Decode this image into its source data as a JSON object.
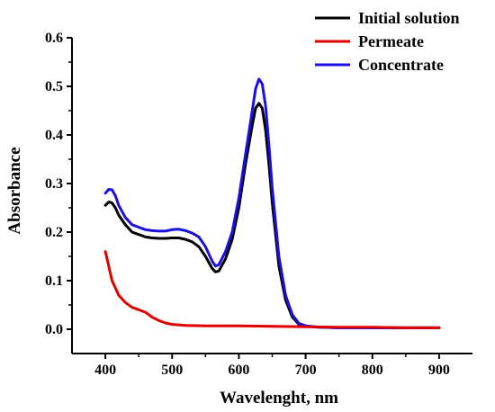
{
  "chart_data": {
    "type": "line",
    "xlabel": "Wavelenght, nm",
    "ylabel": "Absorbance",
    "xlim": [
      350,
      950
    ],
    "ylim": [
      -0.05,
      0.6
    ],
    "xticks": [
      400,
      500,
      600,
      700,
      800,
      900
    ],
    "yticks": [
      0.0,
      0.1,
      0.2,
      0.3,
      0.4,
      0.5,
      0.6
    ],
    "ytick_labels": [
      "0.0",
      "0.1",
      "0.2",
      "0.3",
      "0.4",
      "0.5",
      "0.6"
    ],
    "grid": false,
    "legend_position": "top-right",
    "series": [
      {
        "name": "Initial solution",
        "color": "#000000",
        "x": [
          400,
          405,
          410,
          415,
          420,
          430,
          440,
          450,
          460,
          470,
          480,
          490,
          500,
          510,
          520,
          530,
          540,
          550,
          560,
          565,
          570,
          580,
          590,
          600,
          610,
          620,
          625,
          630,
          635,
          640,
          645,
          650,
          660,
          670,
          680,
          690,
          700,
          720,
          750,
          800,
          850,
          900
        ],
        "y": [
          0.255,
          0.262,
          0.26,
          0.25,
          0.235,
          0.215,
          0.2,
          0.195,
          0.19,
          0.188,
          0.187,
          0.187,
          0.188,
          0.188,
          0.185,
          0.18,
          0.17,
          0.15,
          0.125,
          0.118,
          0.12,
          0.145,
          0.185,
          0.25,
          0.34,
          0.42,
          0.455,
          0.465,
          0.455,
          0.41,
          0.34,
          0.26,
          0.13,
          0.06,
          0.025,
          0.01,
          0.006,
          0.004,
          0.003,
          0.003,
          0.003,
          0.003
        ]
      },
      {
        "name": "Permeate",
        "color": "#e00000",
        "x": [
          400,
          405,
          410,
          420,
          430,
          440,
          450,
          460,
          470,
          480,
          490,
          500,
          520,
          550,
          600,
          650,
          700,
          750,
          800,
          850,
          900
        ],
        "y": [
          0.16,
          0.13,
          0.1,
          0.07,
          0.055,
          0.045,
          0.04,
          0.035,
          0.025,
          0.018,
          0.013,
          0.01,
          0.008,
          0.007,
          0.007,
          0.006,
          0.005,
          0.004,
          0.004,
          0.003,
          0.003
        ]
      },
      {
        "name": "Concentrate",
        "color": "#1a10e0",
        "x": [
          400,
          405,
          410,
          415,
          420,
          430,
          440,
          450,
          460,
          470,
          480,
          490,
          500,
          510,
          520,
          530,
          540,
          550,
          560,
          565,
          570,
          580,
          590,
          600,
          610,
          620,
          625,
          630,
          635,
          640,
          645,
          650,
          660,
          670,
          680,
          690,
          700,
          720,
          750,
          800,
          850,
          900
        ],
        "y": [
          0.28,
          0.288,
          0.287,
          0.275,
          0.255,
          0.23,
          0.215,
          0.21,
          0.205,
          0.203,
          0.202,
          0.202,
          0.205,
          0.206,
          0.203,
          0.198,
          0.19,
          0.17,
          0.14,
          0.13,
          0.133,
          0.16,
          0.2,
          0.27,
          0.36,
          0.45,
          0.495,
          0.515,
          0.505,
          0.46,
          0.38,
          0.29,
          0.15,
          0.07,
          0.03,
          0.012,
          0.007,
          0.004,
          0.003,
          0.003,
          0.003,
          0.003
        ]
      }
    ]
  }
}
